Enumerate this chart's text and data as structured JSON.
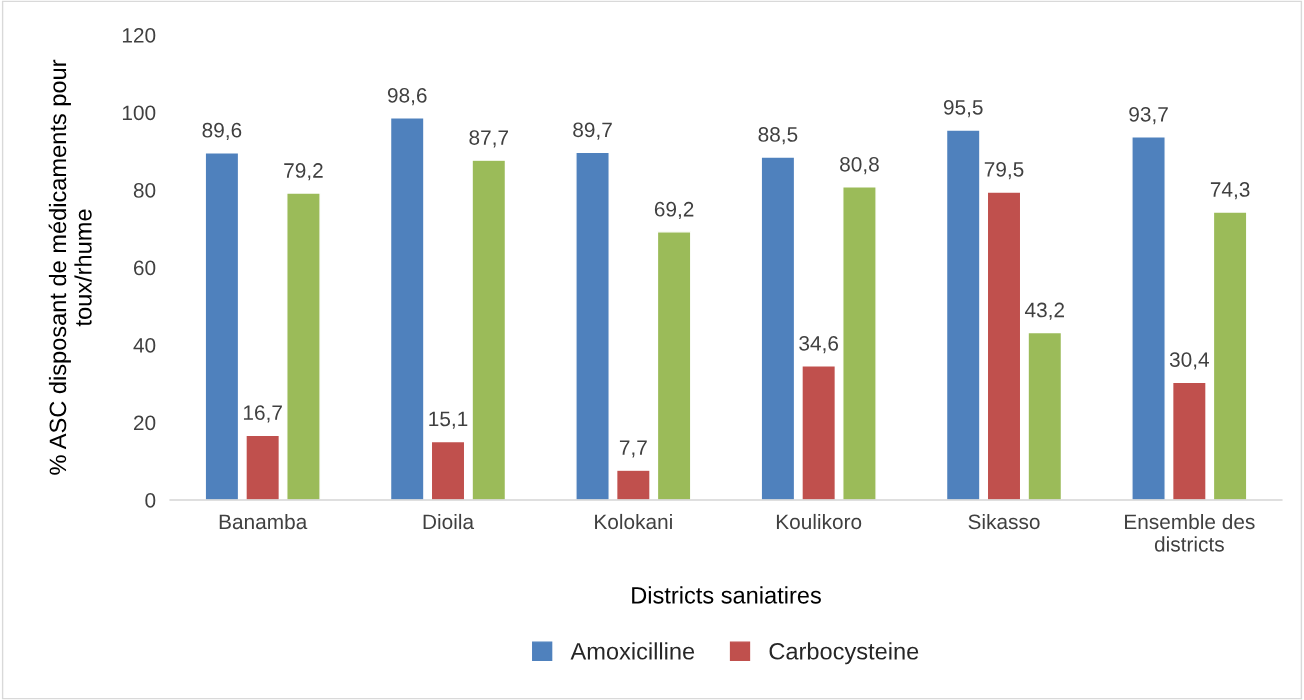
{
  "chart_data": {
    "type": "bar",
    "categories": [
      "Banamba",
      "Dioila",
      "Kolokani",
      "Koulikoro",
      "Sikasso",
      "Ensemble des\ndistricts"
    ],
    "series": [
      {
        "name": "Amoxicilline",
        "color": "#4f81bd",
        "values": [
          89.6,
          98.6,
          89.7,
          88.5,
          95.5,
          93.7
        ],
        "value_labels": [
          "89,6",
          "98,6",
          "89,7",
          "88,5",
          "95,5",
          "93,7"
        ]
      },
      {
        "name": "Carbocysteine",
        "color": "#c0504d",
        "values": [
          16.7,
          15.1,
          7.7,
          34.6,
          79.5,
          30.4
        ],
        "value_labels": [
          "16,7",
          "15,1",
          "7,7",
          "34,6",
          "79,5",
          "30,4"
        ]
      },
      {
        "color": "#9bbb59",
        "values": [
          79.2,
          87.7,
          69.2,
          80.8,
          43.2,
          74.3
        ],
        "value_labels": [
          "79,2",
          "87,7",
          "69,2",
          "80,8",
          "43,2",
          "74,3"
        ]
      }
    ],
    "xlabel": "Districts saniatires",
    "ylabel": "% ASC disposant de médicaments pour\ntoux/rhume",
    "ylim": [
      0,
      120
    ],
    "yticks": [
      0,
      20,
      40,
      60,
      80,
      100,
      120
    ],
    "grid": false,
    "legend": "bottom"
  }
}
